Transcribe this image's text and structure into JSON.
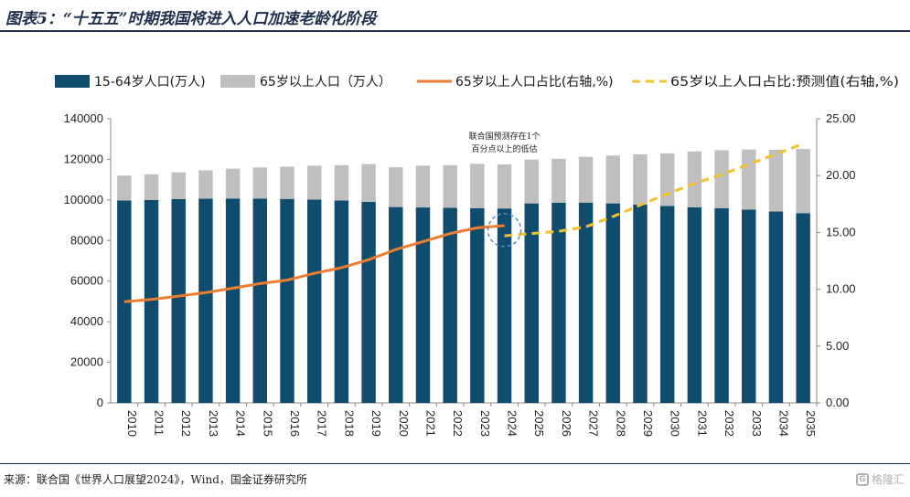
{
  "header": {
    "title": "图表5：“十五五”时期我国将进入人口加速老龄化阶段"
  },
  "footer": {
    "source": "来源：联合国《世界人口展望2024》，Wind，国金证券研究所",
    "watermark": "格隆汇"
  },
  "colors": {
    "working_age": "#0f4c6e",
    "elderly": "#bfbfbf",
    "ratio_line": "#ed7d31",
    "forecast_line": "#f2c12e",
    "circle": "#4f90c8"
  },
  "chart_data": {
    "type": "bar",
    "categories": [
      "2010",
      "2011",
      "2012",
      "2013",
      "2014",
      "2015",
      "2016",
      "2017",
      "2018",
      "2019",
      "2020",
      "2021",
      "2022",
      "2023",
      "2024",
      "2025",
      "2026",
      "2027",
      "2028",
      "2029",
      "2030",
      "2031",
      "2032",
      "2033",
      "2034",
      "2035"
    ],
    "series": [
      {
        "name": "15-64岁人口(万人)",
        "kind": "stacked-bar",
        "axis": "left",
        "values": [
          99700,
          100000,
          100400,
          100600,
          100700,
          100700,
          100500,
          100200,
          99700,
          99100,
          96500,
          96300,
          96100,
          95900,
          95800,
          98300,
          98600,
          98700,
          98300,
          97700,
          97000,
          96400,
          95900,
          95200,
          94300,
          93500
        ]
      },
      {
        "name": "65岁以上人口（万人）",
        "kind": "stacked-bar",
        "axis": "left",
        "values": [
          12300,
          12600,
          13200,
          14000,
          14700,
          15300,
          15900,
          16700,
          17400,
          18600,
          19600,
          20600,
          21000,
          21900,
          21700,
          21600,
          21700,
          22600,
          23600,
          24800,
          26000,
          27500,
          28600,
          29700,
          30400,
          31600
        ]
      },
      {
        "name": "65岁以上人口占比(右轴,%)",
        "kind": "line",
        "axis": "right",
        "x": [
          "2010",
          "2011",
          "2012",
          "2013",
          "2014",
          "2015",
          "2016",
          "2017",
          "2018",
          "2019",
          "2020",
          "2021",
          "2022",
          "2023",
          "2024"
        ],
        "values": [
          8.9,
          9.1,
          9.4,
          9.7,
          10.1,
          10.5,
          10.8,
          11.4,
          11.9,
          12.6,
          13.5,
          14.2,
          14.9,
          15.4,
          15.6
        ]
      },
      {
        "name": "65岁以上人口占比:预测值(右轴,%)",
        "kind": "dashed-line",
        "axis": "right",
        "x": [
          "2024",
          "2025",
          "2026",
          "2027",
          "2028",
          "2029",
          "2030",
          "2031",
          "2032",
          "2033",
          "2034",
          "2035"
        ],
        "values": [
          14.7,
          14.9,
          15.1,
          15.5,
          16.4,
          17.4,
          18.4,
          19.3,
          20.1,
          21.0,
          21.9,
          22.8
        ]
      }
    ],
    "left_axis": {
      "ylim": [
        0,
        140000
      ],
      "ticks": [
        "0",
        "20000",
        "40000",
        "60000",
        "80000",
        "100000",
        "120000",
        "140000"
      ]
    },
    "right_axis": {
      "ylim": [
        0,
        25
      ],
      "ticks": [
        "0.00",
        "5.00",
        "10.00",
        "15.00",
        "20.00",
        "25.00"
      ]
    },
    "annotation": {
      "text_lines": [
        "联合国预测存在1个",
        "百分点以上的低估"
      ],
      "at_category": "2024"
    },
    "legend_position": "top",
    "grid": false
  }
}
